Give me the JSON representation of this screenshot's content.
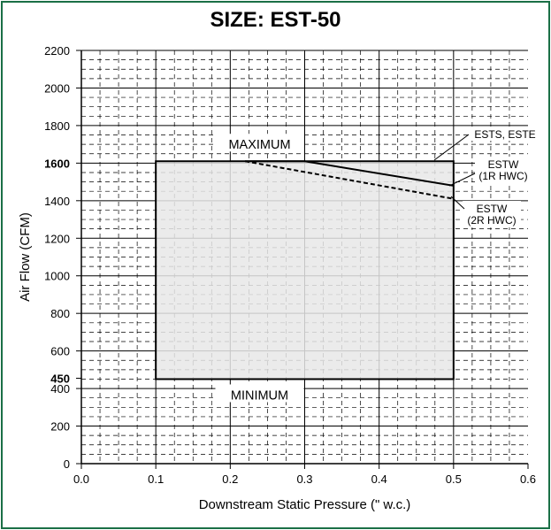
{
  "chart_data": {
    "type": "area",
    "title": "SIZE: EST-50",
    "xlabel": "Downstream Static Pressure (\" w.c.)",
    "ylabel": "Air Flow (CFM)",
    "xlim": [
      0.0,
      0.6
    ],
    "ylim": [
      0,
      2200
    ],
    "x_ticks": [
      "0.0",
      "0.1",
      "0.2",
      "0.3",
      "0.4",
      "0.5",
      "0.6"
    ],
    "y_ticks": [
      "0",
      "200",
      "400",
      "600",
      "800",
      "1000",
      "1200",
      "1400",
      "1800",
      "2000",
      "2200"
    ],
    "y_ticks_bold": [
      "450",
      "1600"
    ],
    "grid": true,
    "region": {
      "x_min": 0.1,
      "x_max": 0.5,
      "y_min": 450,
      "y_max": 1610,
      "label_top": "MAXIMUM",
      "label_bottom": "MINIMUM"
    },
    "series": [
      {
        "name": "ESTS, ESTE",
        "style": "edge",
        "points": [
          [
            0.5,
            1610
          ],
          [
            0.5,
            1610
          ]
        ]
      },
      {
        "name": "ESTW (1R HWC)",
        "style": "solid",
        "points": [
          [
            0.22,
            1610
          ],
          [
            0.3,
            1610
          ],
          [
            0.5,
            1480
          ]
        ]
      },
      {
        "name": "ESTW (2R HWC)",
        "style": "dashed",
        "points": [
          [
            0.22,
            1610
          ],
          [
            0.5,
            1410
          ]
        ]
      }
    ],
    "annotations": [
      {
        "text": "ESTS, ESTE"
      },
      {
        "text": "ESTW",
        "text2": "(1R HWC)"
      },
      {
        "text": "ESTW",
        "text2": "(2R HWC)"
      }
    ],
    "colors": {
      "frame": "#1b6f46",
      "region_fill": "#e8e8e8"
    }
  }
}
